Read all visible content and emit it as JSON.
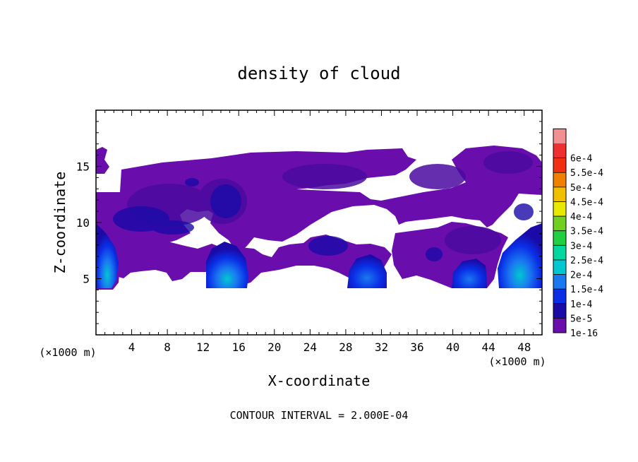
{
  "chart_data": {
    "type": "heatmap",
    "title": "density of cloud",
    "xlabel": "X-coordinate",
    "ylabel": "Z-coordinate",
    "x_unit": "(×1000 m)",
    "footer": "CONTOUR INTERVAL = 2.000E-04",
    "xlim": [
      0,
      50
    ],
    "ylim": [
      0,
      20
    ],
    "x_ticks": [
      4,
      8,
      12,
      16,
      20,
      24,
      28,
      32,
      36,
      40,
      44,
      48
    ],
    "y_ticks": [
      5,
      10,
      15
    ],
    "colorbar": {
      "levels": [
        "1e-16",
        "5e-5",
        "1e-4",
        "1.5e-4",
        "2e-4",
        "2.5e-4",
        "3e-4",
        "3.5e-4",
        "4e-4",
        "4.5e-4",
        "5e-4",
        "5.5e-4",
        "6e-4"
      ],
      "colors": [
        "#6a0dad",
        "#1a0aa8",
        "#0a2ee6",
        "#1a78f0",
        "#00c8d0",
        "#00d8a0",
        "#20d040",
        "#70d020",
        "#e8e800",
        "#f0c000",
        "#f08000",
        "#f03010",
        "#f03030",
        "#f09090"
      ]
    },
    "regions": [
      {
        "name": "main cloud layer",
        "x_range": [
          0,
          50
        ],
        "z_range": [
          4.3,
          16.5
        ],
        "max_density_approx": "5e-5"
      },
      {
        "name": "left edge core",
        "x_range": [
          0,
          2.5
        ],
        "z_range": [
          4.3,
          10
        ],
        "max_density_approx": "1.5e-4"
      },
      {
        "name": "core near x=15",
        "x_range": [
          12,
          17.5
        ],
        "z_range": [
          4.3,
          8.3
        ],
        "max_density_approx": "1.5e-4"
      },
      {
        "name": "core near x=30",
        "x_range": [
          28,
          32.5
        ],
        "z_range": [
          4.3,
          7
        ],
        "max_density_approx": "1e-4"
      },
      {
        "name": "core near x=42",
        "x_range": [
          39.5,
          44.5
        ],
        "z_range": [
          4.3,
          6.8
        ],
        "max_density_approx": "1e-4"
      },
      {
        "name": "right edge core",
        "x_range": [
          45,
          50
        ],
        "z_range": [
          4.3,
          10
        ],
        "max_density_approx": "2e-4"
      }
    ]
  }
}
